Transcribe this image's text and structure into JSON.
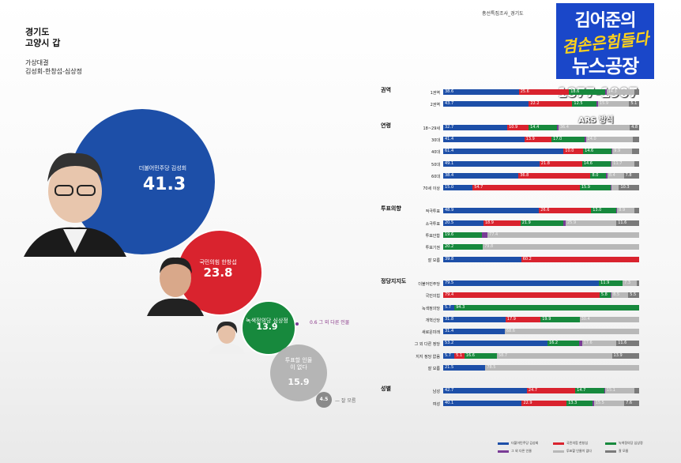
{
  "header": {
    "region_line1": "경기도",
    "region_line2": "고양시 갑",
    "matchup_line1": "가상대결",
    "matchup_line2": "김성회-한창섭-심상정",
    "survey_note": "총선특집조사_경기도",
    "brand_line1": "김어준의",
    "brand_line2": "겸손은힘들다",
    "brand_line3": "뉴스공장",
    "phone": "1877-1907",
    "method": "ARS 방식"
  },
  "colors": {
    "dem": "#1d4fa8",
    "ppp": "#d9232e",
    "justice": "#17893d",
    "other": "#7a3c96",
    "none": "#b8b8b8",
    "unsure": "#7a7a7a"
  },
  "chart_data": [
    {
      "type": "bubble",
      "items": [
        {
          "name": "더불어민주당 김성회",
          "value": 41.3,
          "color": "#1d4fa8"
        },
        {
          "name": "국민의힘 한창섭",
          "value": 23.8,
          "color": "#d9232e"
        },
        {
          "name": "녹색정의당 심상정",
          "value": 13.9,
          "color": "#17893d"
        },
        {
          "name": "투표할 인물이 없다",
          "value": 15.9,
          "color": "#b5b5b5"
        },
        {
          "name": "잘 모름",
          "value": 4.5,
          "color": "#8a8a8a"
        }
      ],
      "other_label": "그 외 다른 인물",
      "other_value": 0.6
    },
    {
      "type": "bar",
      "stacked": true,
      "segment_colors": [
        "#1d4fa8",
        "#d9232e",
        "#17893d",
        "#7a3c96",
        "#b8b8b8",
        "#7a7a7a"
      ],
      "legend": [
        "더불어민주당 김성회",
        "국민의힘 한창섭",
        "녹색정의당 심상정",
        "그 외 다른 인물",
        "투표할 인물이 없다",
        "잘 모름"
      ],
      "groups": [
        {
          "label": "권역",
          "rows": [
            {
              "label": "1권역",
              "values": [
                38.6,
                25.6,
                18.6,
                0.5,
                14.3,
                2.4
              ]
            },
            {
              "label": "2권역",
              "values": [
                43.7,
                22.2,
                12.5,
                0.6,
                15.9,
                5.1
              ]
            }
          ]
        },
        {
          "label": "연령",
          "rows": [
            {
              "label": "18~29세",
              "values": [
                32.7,
                10.9,
                14.4,
                0.8,
                36.4,
                4.8
              ]
            },
            {
              "label": "30대",
              "values": [
                41.4,
                13.9,
                17.0,
                0.5,
                24.0,
                3.2
              ]
            },
            {
              "label": "40대",
              "values": [
                61.4,
                10.0,
                14.6,
                0.4,
                9.9,
                3.7
              ]
            },
            {
              "label": "50대",
              "values": [
                49.1,
                21.8,
                14.6,
                0.5,
                11.7,
                2.3
              ]
            },
            {
              "label": "60대",
              "values": [
                38.4,
                36.8,
                8.0,
                0.6,
                8.4,
                7.8
              ]
            },
            {
              "label": "70세 이상",
              "values": [
                15.0,
                54.7,
                15.9,
                0.4,
                3.7,
                10.3
              ]
            }
          ]
        },
        {
          "label": "투표의향",
          "rows": [
            {
              "label": "적극투표",
              "values": [
                48.9,
                26.6,
                13.0,
                0.3,
                8.9,
                2.3
              ]
            },
            {
              "label": "소극투표",
              "values": [
                20.5,
                18.9,
                21.9,
                1.2,
                25.9,
                11.6
              ]
            },
            {
              "label": "투표안함",
              "values": [
                0,
                0,
                19.6,
                3.0,
                77.4,
                0
              ]
            },
            {
              "label": "투표기권",
              "values": [
                0,
                0,
                20.2,
                0,
                79.8,
                0
              ]
            },
            {
              "label": "잘 모름",
              "values": [
                39.8,
                60.2,
                0,
                0,
                0,
                0
              ]
            }
          ]
        },
        {
          "label": "정당지지도",
          "rows": [
            {
              "label": "더불어민주당",
              "values": [
                79.5,
                0,
                11.9,
                0.2,
                7.3,
                1.1
              ]
            },
            {
              "label": "국민의힘",
              "values": [
                0,
                79.4,
                5.8,
                0.3,
                8.5,
                5.5
              ]
            },
            {
              "label": "녹색정의당",
              "values": [
                5.7,
                0,
                94.3,
                0,
                0,
                0
              ]
            },
            {
              "label": "개혁신당",
              "values": [
                31.8,
                17.9,
                19.9,
                0,
                30.4,
                0
              ]
            },
            {
              "label": "새로운미래",
              "values": [
                31.4,
                0,
                0,
                0,
                68.6,
                0
              ]
            },
            {
              "label": "그 외 다른 정당",
              "values": [
                53.2,
                0,
                16.2,
                1.4,
                17.6,
                11.6
              ]
            },
            {
              "label": "지지 정당 없음",
              "values": [
                5.7,
                5.1,
                16.6,
                0,
                58.7,
                13.9
              ]
            },
            {
              "label": "잘 모름",
              "values": [
                21.5,
                0,
                0,
                0,
                78.5,
                0
              ]
            }
          ]
        },
        {
          "label": "성별",
          "rows": [
            {
              "label": "남성",
              "values": [
                42.7,
                24.7,
                14.7,
                0.5,
                15.1,
                2.3
              ]
            },
            {
              "label": "여성",
              "values": [
                40.1,
                22.9,
                13.3,
                0.6,
                15.5,
                7.6
              ]
            }
          ]
        }
      ]
    }
  ]
}
